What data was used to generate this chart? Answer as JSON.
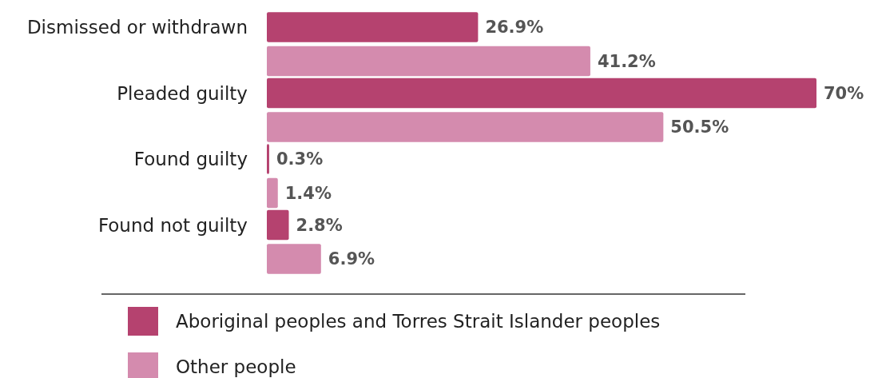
{
  "chart_data": {
    "type": "bar",
    "orientation": "horizontal",
    "categories": [
      "Dismissed or withdrawn",
      "Pleaded guilty",
      "Found guilty",
      "Found not guilty"
    ],
    "series": [
      {
        "name": "Aboriginal peoples and Torres Strait Islander peoples",
        "color": "#b5426f",
        "values": [
          26.9,
          70,
          0.3,
          2.8
        ],
        "value_labels": [
          "26.9%",
          "70%",
          "0.3%",
          "2.8%"
        ]
      },
      {
        "name": "Other people",
        "color": "#d48bae",
        "values": [
          41.2,
          50.5,
          1.4,
          6.9
        ],
        "value_labels": [
          "41.2%",
          "50.5%",
          "1.4%",
          "6.9%"
        ]
      }
    ],
    "legend": "bottom"
  }
}
